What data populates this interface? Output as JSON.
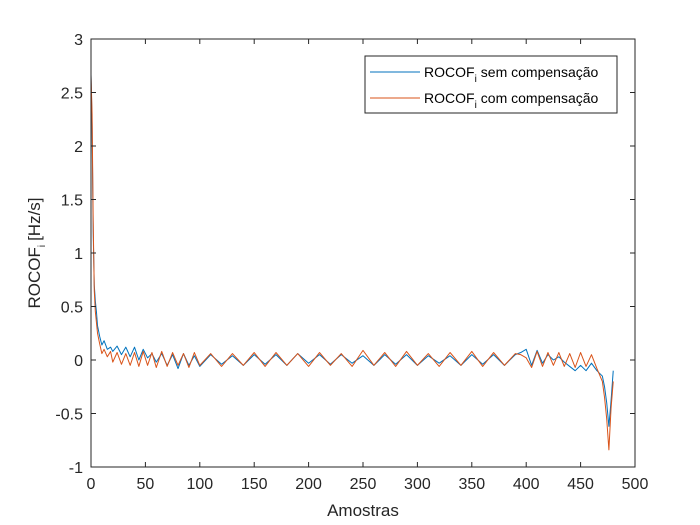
{
  "chart_data": {
    "type": "line",
    "xlabel": "Amostras",
    "ylabel": "ROCOF",
    "ylabel_sub": "i",
    "ylabel_unit": "[Hz/s]",
    "xlim": [
      0,
      500
    ],
    "ylim": [
      -1,
      3
    ],
    "xticks": [
      "0",
      "50",
      "100",
      "150",
      "200",
      "250",
      "300",
      "350",
      "400",
      "450",
      "500"
    ],
    "yticks": [
      "-1",
      "-0.5",
      "0",
      "0.5",
      "1",
      "1.5",
      "2",
      "2.5",
      "3"
    ],
    "grid": false,
    "legend_position": "top-right",
    "series": [
      {
        "name": "ROCOF",
        "name_sub": "i",
        "name_suffix": "sem compensação",
        "color": "#0072BD",
        "x": [
          0,
          1,
          2,
          3,
          4,
          5,
          6,
          8,
          10,
          12,
          15,
          18,
          20,
          24,
          28,
          32,
          36,
          40,
          44,
          48,
          52,
          56,
          60,
          65,
          70,
          75,
          80,
          85,
          90,
          95,
          100,
          110,
          120,
          130,
          140,
          150,
          160,
          170,
          180,
          190,
          200,
          210,
          220,
          230,
          240,
          250,
          260,
          270,
          280,
          290,
          300,
          310,
          320,
          330,
          340,
          350,
          360,
          370,
          380,
          390,
          395,
          400,
          405,
          410,
          415,
          420,
          425,
          430,
          435,
          440,
          445,
          450,
          455,
          460,
          465,
          470,
          472,
          474,
          476,
          478,
          480
        ],
        "y": [
          2.67,
          2.2,
          1.2,
          0.7,
          0.55,
          0.45,
          0.32,
          0.22,
          0.14,
          0.18,
          0.1,
          0.12,
          0.08,
          0.13,
          0.05,
          0.12,
          0.03,
          0.12,
          0.0,
          0.1,
          0.02,
          0.06,
          -0.02,
          0.06,
          -0.05,
          0.05,
          -0.08,
          0.06,
          -0.05,
          0.04,
          -0.06,
          0.05,
          -0.04,
          0.04,
          -0.05,
          0.05,
          -0.04,
          0.05,
          -0.05,
          0.06,
          -0.03,
          0.05,
          -0.04,
          0.05,
          -0.03,
          0.04,
          -0.05,
          0.05,
          -0.04,
          0.05,
          -0.05,
          0.04,
          -0.03,
          0.04,
          -0.05,
          0.05,
          -0.04,
          0.05,
          -0.05,
          0.05,
          0.07,
          0.1,
          -0.05,
          0.09,
          -0.03,
          0.05,
          0.0,
          0.03,
          -0.02,
          -0.06,
          -0.1,
          -0.05,
          -0.1,
          -0.03,
          -0.1,
          -0.15,
          -0.25,
          -0.4,
          -0.62,
          -0.38,
          -0.1
        ]
      },
      {
        "name": "ROCOF",
        "name_sub": "i",
        "name_suffix": "com compensação",
        "color": "#D95319",
        "x": [
          0,
          1,
          2,
          3,
          4,
          5,
          6,
          8,
          10,
          12,
          15,
          18,
          20,
          24,
          28,
          32,
          36,
          40,
          44,
          48,
          52,
          56,
          60,
          65,
          70,
          75,
          80,
          85,
          90,
          95,
          100,
          110,
          120,
          130,
          140,
          150,
          160,
          170,
          180,
          190,
          200,
          210,
          220,
          230,
          240,
          250,
          260,
          270,
          280,
          290,
          300,
          310,
          320,
          330,
          340,
          350,
          360,
          370,
          380,
          390,
          395,
          400,
          405,
          410,
          415,
          420,
          425,
          430,
          435,
          440,
          445,
          450,
          455,
          460,
          465,
          470,
          472,
          474,
          476,
          478,
          480
        ],
        "y": [
          2.66,
          2.3,
          1.3,
          0.65,
          0.45,
          0.35,
          0.25,
          0.15,
          0.06,
          0.1,
          0.03,
          0.08,
          -0.02,
          0.07,
          -0.04,
          0.06,
          -0.05,
          0.07,
          -0.06,
          0.08,
          -0.05,
          0.07,
          -0.07,
          0.08,
          -0.06,
          0.07,
          -0.05,
          0.06,
          -0.07,
          0.07,
          -0.05,
          0.06,
          -0.06,
          0.06,
          -0.05,
          0.07,
          -0.06,
          0.07,
          -0.05,
          0.06,
          -0.06,
          0.07,
          -0.05,
          0.06,
          -0.06,
          0.09,
          -0.05,
          0.07,
          -0.06,
          0.08,
          -0.05,
          0.06,
          -0.06,
          0.07,
          -0.05,
          0.08,
          -0.06,
          0.07,
          -0.05,
          0.06,
          0.05,
          0.02,
          -0.07,
          0.08,
          -0.06,
          0.07,
          -0.05,
          0.07,
          -0.06,
          0.06,
          -0.07,
          0.07,
          -0.06,
          0.05,
          -0.08,
          -0.2,
          -0.35,
          -0.55,
          -0.84,
          -0.45,
          -0.2
        ]
      }
    ]
  }
}
